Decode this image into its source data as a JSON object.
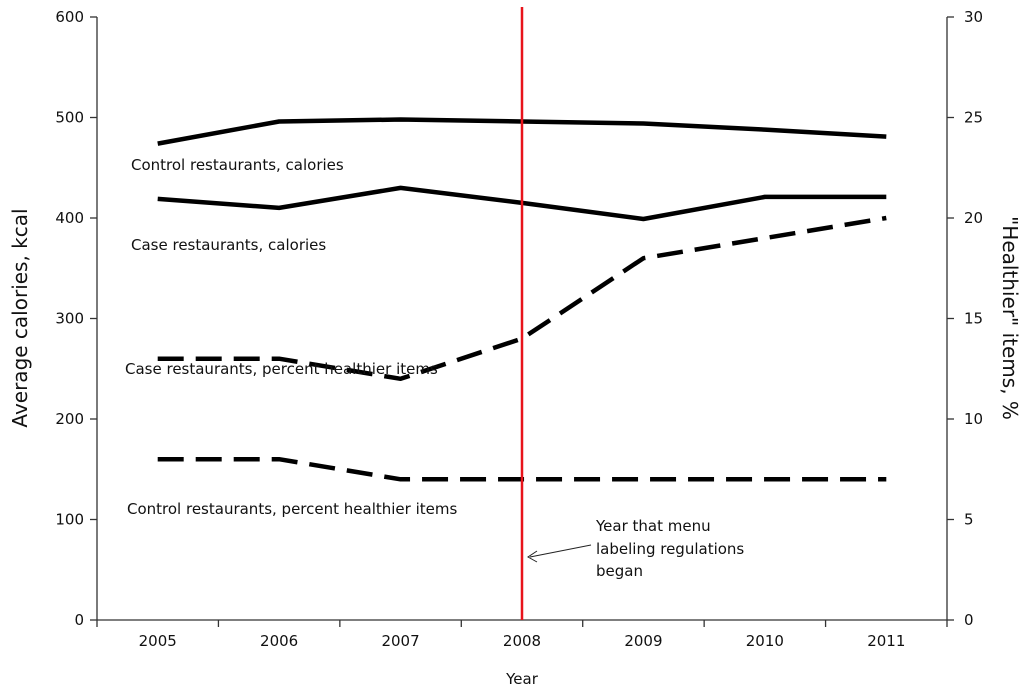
{
  "chart_data": {
    "type": "line",
    "x": [
      "2005",
      "2006",
      "2007",
      "2008",
      "2009",
      "2010",
      "2011"
    ],
    "xlabel": "Year",
    "ylabel_left": "Average calories, kcal",
    "ylabel_right": "\"Healthier\" items, %",
    "ylim_left": [
      0,
      600
    ],
    "ylim_right": [
      0,
      30
    ],
    "left_ticks": [
      "0",
      "100",
      "200",
      "300",
      "400",
      "500",
      "600"
    ],
    "right_ticks": [
      "0",
      "5",
      "10",
      "15",
      "20",
      "25",
      "30"
    ],
    "grid": false,
    "series": [
      {
        "name": "Control restaurants, calories",
        "axis": "left",
        "style": "solid",
        "values": [
          474,
          496,
          498,
          496,
          494,
          488,
          481
        ]
      },
      {
        "name": "Case restaurants, calories",
        "axis": "left",
        "style": "solid",
        "values": [
          419,
          410,
          430,
          415,
          399,
          421,
          421
        ]
      },
      {
        "name": "Case restaurants, percent healthier items",
        "axis": "right",
        "style": "dashed",
        "values": [
          13,
          13,
          12,
          14,
          18,
          19,
          20
        ]
      },
      {
        "name": "Control restaurants, percent healthier items",
        "axis": "right",
        "style": "dashed",
        "values": [
          8,
          8,
          7,
          7,
          7,
          7,
          7
        ]
      }
    ],
    "vline": {
      "x": "2008",
      "color": "#e8131b"
    },
    "annotation": {
      "lines": [
        "Year that menu",
        "labeling regulations",
        "began"
      ]
    },
    "colors": {
      "line": "#000000",
      "axis": "#333333",
      "vline": "#e8131b"
    }
  }
}
